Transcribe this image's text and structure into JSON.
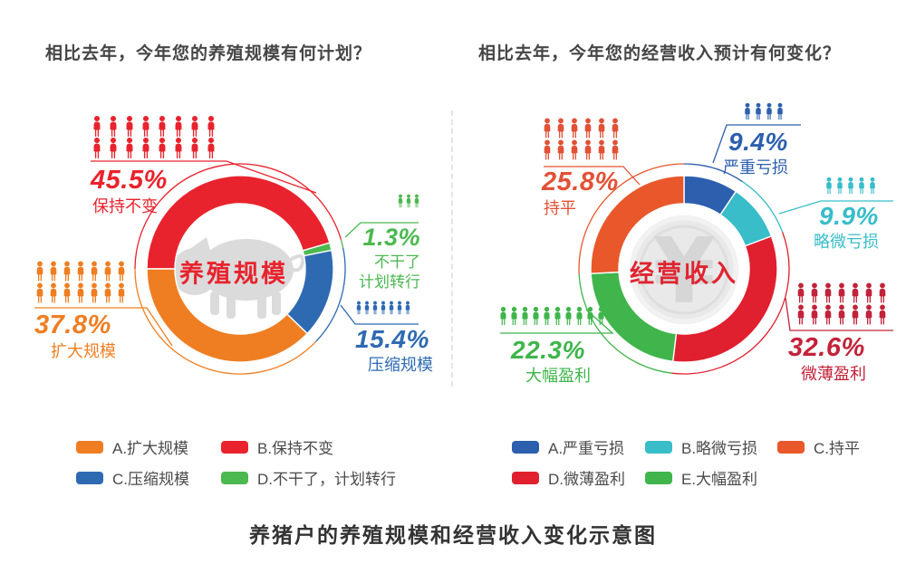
{
  "titles": {
    "bottom_caption": "养猪户的养殖规模和经营收入变化示意图"
  },
  "chart_data": [
    {
      "type": "donut",
      "question": "相比去年，今年您的养殖规模有何计划？",
      "center_label": "养殖规模",
      "watermark": "pig-icon",
      "units": "%",
      "start_angle_deg": 270,
      "direction": "clockwise",
      "slices": [
        {
          "letter": "B",
          "label": "保持不变",
          "value": 45.5,
          "pct": "45.5%",
          "color": "#e8232d",
          "icon_rows": [
            8,
            8
          ]
        },
        {
          "letter": "D",
          "label": "不干了计划转行",
          "callout_lines": [
            "不干了",
            "计划转行"
          ],
          "value": 1.3,
          "pct": "1.3%",
          "color": "#4cb850",
          "icon_rows": [
            3
          ]
        },
        {
          "letter": "C",
          "label": "压缩规模",
          "value": 15.4,
          "pct": "15.4%",
          "color": "#2e6ab2",
          "icon_rows": [
            7
          ]
        },
        {
          "letter": "A",
          "label": "扩大规模",
          "value": 37.8,
          "pct": "37.8%",
          "color": "#ef7e22",
          "icon_rows": [
            7,
            7
          ]
        }
      ],
      "legend": [
        {
          "label": "A.扩大规模",
          "color": "#ef7e22"
        },
        {
          "label": "B.保持不变",
          "color": "#e8232d"
        },
        {
          "label": "C.压缩规模",
          "color": "#2e6ab2"
        },
        {
          "label": "D.不干了，计划转行",
          "color": "#4cb850"
        }
      ]
    },
    {
      "type": "donut",
      "question": "相比去年，今年您的经营收入预计有何变化？",
      "center_label": "经营收入",
      "watermark": "yuan-coin-icon",
      "units": "%",
      "start_angle_deg": 0,
      "direction": "clockwise",
      "slices": [
        {
          "letter": "A",
          "label": "严重亏损",
          "value": 9.4,
          "pct": "9.4%",
          "color": "#2c5fae",
          "icon_rows": [
            4
          ]
        },
        {
          "letter": "B",
          "label": "略微亏损",
          "value": 9.9,
          "pct": "9.9%",
          "color": "#38bdc9",
          "icon_rows": [
            5
          ]
        },
        {
          "letter": "D",
          "label": "微薄盈利",
          "value": 32.6,
          "pct": "32.6%",
          "color": "#e01f2f",
          "label_color": "#c2233a",
          "icon_rows": [
            7,
            7
          ]
        },
        {
          "letter": "E",
          "label": "大幅盈利",
          "value": 22.3,
          "pct": "22.3%",
          "color": "#3fb54b",
          "icon_rows": [
            10
          ]
        },
        {
          "letter": "C",
          "label": "持平",
          "value": 25.8,
          "pct": "25.8%",
          "color": "#e8582a",
          "label_color": "#e25136",
          "icon_rows": [
            6,
            6
          ]
        }
      ],
      "legend": [
        {
          "label": "A.严重亏损",
          "color": "#2c5fae"
        },
        {
          "label": "B.略微亏损",
          "color": "#38bdc9"
        },
        {
          "label": "C.持平",
          "color": "#e8582a"
        },
        {
          "label": "D.微薄盈利",
          "color": "#e01f2f"
        },
        {
          "label": "E.大幅盈利",
          "color": "#3fb54b"
        }
      ]
    }
  ]
}
